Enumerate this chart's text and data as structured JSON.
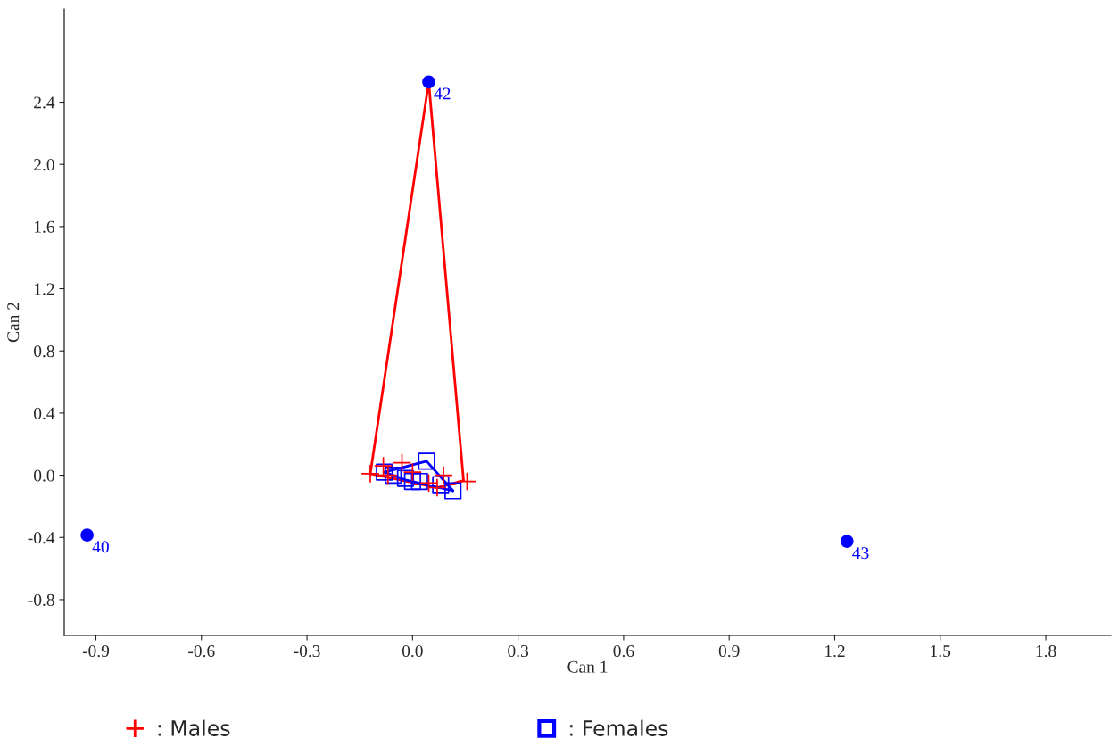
{
  "chart_data": {
    "type": "scatter",
    "xlabel": "Can 1",
    "ylabel": "Can 2",
    "xlim": [
      -0.99,
      1.985
    ],
    "ylim": [
      -1.03,
      3.0
    ],
    "xticks": [
      -0.9,
      -0.6,
      -0.3,
      {
        "value": 0,
        "label": "0.0"
      },
      0.3,
      0.6,
      0.9,
      1.2,
      1.5,
      1.8
    ],
    "yticks": [
      {
        "value": -0.8,
        "label": "-0.8"
      },
      {
        "value": -0.4,
        "label": "-0.4"
      },
      {
        "value": 0.0,
        "label": "0.0"
      },
      {
        "value": 0.4,
        "label": "0.4"
      },
      {
        "value": 0.8,
        "label": "0.8"
      },
      {
        "value": 1.2,
        "label": "1.2"
      },
      {
        "value": 1.6,
        "label": "1.6"
      },
      {
        "value": 2.0,
        "label": "2.0"
      },
      {
        "value": 2.4,
        "label": "2.4"
      }
    ],
    "grid": false,
    "legend": "bottom",
    "series": [
      {
        "name": ": Males",
        "marker": "cross",
        "color": "#ff0000",
        "x": [
          -0.12,
          -0.083,
          -0.03,
          -0.07,
          0.0,
          0.088,
          0.046,
          0.07,
          0.155
        ],
        "values": [
          0.01,
          0.06,
          0.08,
          0.0,
          0.02,
          0.0,
          -0.05,
          -0.08,
          -0.04
        ]
      },
      {
        "name": ": Females",
        "marker": "square",
        "color": "#0000ff",
        "x": [
          -0.08,
          -0.055,
          -0.02,
          0.0,
          0.02,
          0.04,
          0.08,
          0.115
        ],
        "values": [
          0.02,
          0.0,
          -0.02,
          -0.04,
          -0.04,
          0.09,
          -0.06,
          -0.1
        ]
      },
      {
        "type": "line",
        "marker": "none",
        "color": "#ff0000",
        "x": [
          -0.12,
          0.046,
          0.145
        ],
        "values": [
          0.01,
          2.53,
          -0.035
        ]
      },
      {
        "type": "line",
        "marker": "none",
        "color": "#ff0000",
        "x": [
          -0.12,
          0.07,
          0.145
        ],
        "values": [
          0.01,
          -0.08,
          -0.035
        ]
      },
      {
        "type": "line",
        "marker": "none",
        "color": "#0000ff",
        "x": [
          -0.08,
          0.04,
          0.115
        ],
        "values": [
          0.02,
          0.09,
          -0.1
        ]
      },
      {
        "type": "line",
        "marker": "none",
        "color": "#0000ff",
        "x": [
          -0.08,
          -0.02,
          0.115
        ],
        "values": [
          0.02,
          -0.03,
          -0.1
        ]
      },
      {
        "marker": "circle",
        "color": "#0000ff",
        "x": [
          -0.925,
          0.046,
          1.235
        ],
        "values": [
          -0.385,
          2.53,
          -0.425
        ]
      }
    ],
    "annotations": [
      {
        "text": "40",
        "x": -0.925,
        "y": -0.385
      },
      {
        "text": "42",
        "x": 0.046,
        "y": 2.53
      },
      {
        "text": "43",
        "x": 1.235,
        "y": -0.425
      }
    ]
  }
}
